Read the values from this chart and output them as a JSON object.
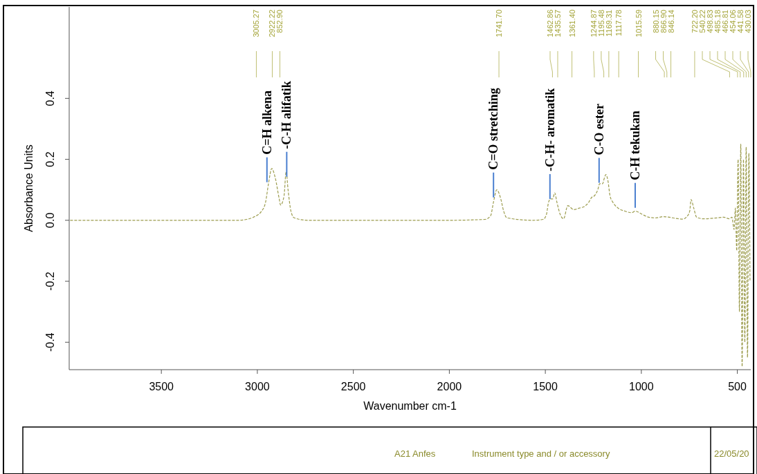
{
  "chart_data": {
    "type": "line",
    "xlabel": "Wavenumber cm-1",
    "ylabel": "Absorbance Units",
    "xlim": [
      3980,
      430
    ],
    "ylim": [
      -0.49,
      0.7
    ],
    "xticks": [
      3500,
      3000,
      2500,
      2000,
      1500,
      1000,
      500
    ],
    "yticks": [
      -0.4,
      -0.2,
      {
        "value": 0,
        "label": "0.0"
      },
      0.2,
      0.4
    ],
    "grid": false,
    "marker": "none",
    "line_style": "dashed",
    "series": [
      {
        "color": "#9c9c4e",
        "x": [
          3975,
          3800,
          3600,
          3400,
          3200,
          3100,
          3056,
          3021,
          2978,
          2957,
          2942,
          2925,
          2907,
          2886,
          2879,
          2861,
          2850,
          2840,
          2825,
          2808,
          2737,
          2500,
          2200,
          2000,
          1813,
          1785,
          1770,
          1753,
          1732,
          1717,
          1700,
          1565,
          1511,
          1494,
          1483,
          1472,
          1462,
          1451,
          1440,
          1423,
          1405,
          1383,
          1352,
          1323,
          1298,
          1273,
          1259,
          1245,
          1227,
          1217,
          1202,
          1192,
          1185,
          1174,
          1163,
          1149,
          1138,
          1121,
          1085,
          1050,
          1032,
          997,
          961,
          925,
          883,
          854,
          819,
          783,
          766,
          748,
          741,
          727,
          712,
          677,
          606,
          570,
          542,
          528,
          517,
          510,
          503,
          496,
          489,
          482,
          475,
          468,
          461,
          454,
          447,
          440,
          434
        ],
        "values": [
          0.0,
          0.0,
          0.0,
          0.0,
          0.0,
          0.0,
          0.003,
          0.01,
          0.03,
          0.06,
          0.12,
          0.17,
          0.14,
          0.07,
          0.05,
          0.08,
          0.16,
          0.1,
          0.03,
          0.008,
          0.0,
          0.0,
          0.0,
          0.0,
          0.003,
          0.015,
          0.06,
          0.1,
          0.07,
          0.03,
          0.008,
          0.0,
          0.003,
          0.02,
          0.06,
          0.07,
          0.07,
          0.09,
          0.06,
          0.02,
          0.005,
          0.048,
          0.035,
          0.04,
          0.045,
          0.06,
          0.075,
          0.08,
          0.1,
          0.12,
          0.12,
          0.14,
          0.15,
          0.13,
          0.08,
          0.06,
          0.05,
          0.04,
          0.03,
          0.025,
          0.03,
          0.02,
          0.01,
          0.008,
          0.012,
          0.01,
          0.006,
          0.004,
          0.01,
          0.03,
          0.068,
          0.04,
          0.01,
          0.005,
          0.008,
          0.01,
          0.005,
          0.01,
          -0.03,
          0.04,
          -0.1,
          0.2,
          -0.3,
          0.25,
          -0.48,
          0.2,
          -0.4,
          0.24,
          -0.45,
          0.22,
          -0.2
        ]
      }
    ],
    "annotations": [
      {
        "text": "C=H alkena",
        "x": 2950,
        "y": 0.125
      },
      {
        "text": "-C-H alifatik",
        "x": 2847,
        "y": 0.143
      },
      {
        "text": "C=O stretching",
        "x": 1770,
        "y": 0.075
      },
      {
        "text": "-C-H- aromatik",
        "x": 1476,
        "y": 0.07
      },
      {
        "text": "C-O ester",
        "x": 1220,
        "y": 0.123
      },
      {
        "text": "C-H tekukan",
        "x": 1032,
        "y": 0.041
      },
      "3005.27",
      "2922.22",
      "852.90",
      "1741.70",
      "1462.86",
      "1435.57",
      "1361.40",
      "1244.87",
      "1195.48",
      "1169.31",
      "1117.78",
      "1015.59",
      "880.15",
      "866.90",
      "846.14",
      "722.20",
      "540.22",
      "498.83",
      "485.18",
      "466.81",
      "454.06",
      "441.58",
      "430.03",
      "A21 Anfes",
      "Instrument type and / or accessory",
      "22/05/20"
    ]
  }
}
